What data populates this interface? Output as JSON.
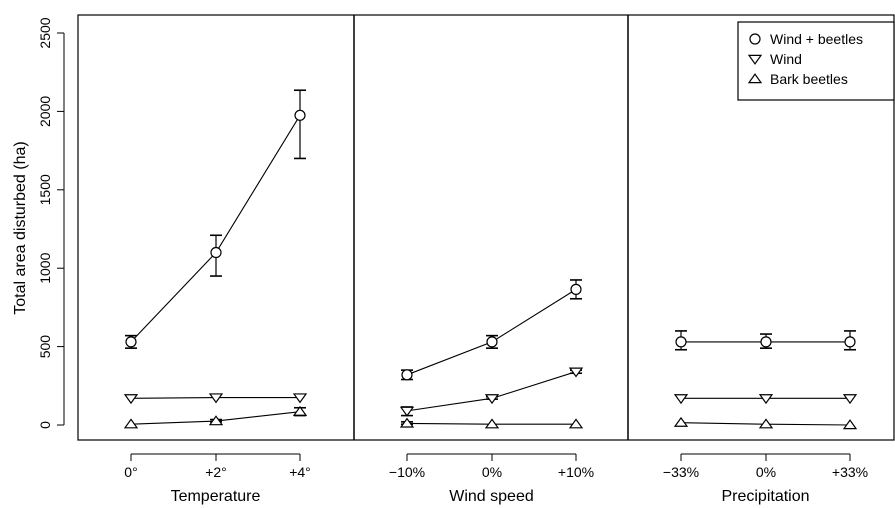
{
  "chart_data": {
    "type": "line",
    "ylabel": "Total area disturbed (ha)",
    "ylim": [
      0,
      2500
    ],
    "yticks": [
      "0",
      "500",
      "1000",
      "1500",
      "2000",
      "2500"
    ],
    "grid": false,
    "legend_position": "top-right",
    "legend": [
      {
        "name": "Wind + beetles",
        "marker": "circle"
      },
      {
        "name": "Wind",
        "marker": "triangle-down"
      },
      {
        "name": "Bark beetles",
        "marker": "triangle-up"
      }
    ],
    "panels": [
      {
        "xlabel": "Temperature",
        "categories": [
          "0°",
          "+2°",
          "+4°"
        ],
        "series": [
          {
            "name": "Wind + beetles",
            "values": [
              530,
              1100,
              1975
            ],
            "err_low": [
              490,
              950,
              1700
            ],
            "err_high": [
              570,
              1210,
              2135
            ]
          },
          {
            "name": "Wind",
            "values": [
              170,
              175,
              175
            ]
          },
          {
            "name": "Bark beetles",
            "values": [
              5,
              25,
              85
            ],
            "err_low": [
              5,
              20,
              60
            ],
            "err_high": [
              10,
              35,
              110
            ]
          }
        ]
      },
      {
        "xlabel": "Wind speed",
        "categories": [
          "−10%",
          "0%",
          "+10%"
        ],
        "series": [
          {
            "name": "Wind + beetles",
            "values": [
              320,
              530,
              865
            ],
            "err_low": [
              290,
              490,
              805
            ],
            "err_high": [
              350,
              570,
              925
            ]
          },
          {
            "name": "Wind",
            "values": [
              90,
              170,
              340
            ],
            "err_low": [
              60,
              165,
              330
            ],
            "err_high": [
              115,
              180,
              350
            ]
          },
          {
            "name": "Bark beetles",
            "values": [
              10,
              5,
              5
            ],
            "err_low": [
              5,
              5,
              5
            ],
            "err_high": [
              20,
              10,
              10
            ]
          }
        ]
      },
      {
        "xlabel": "Precipitation",
        "categories": [
          "−33%",
          "0%",
          "+33%"
        ],
        "series": [
          {
            "name": "Wind + beetles",
            "values": [
              530,
              530,
              530
            ],
            "err_low": [
              480,
              490,
              480
            ],
            "err_high": [
              600,
              580,
              600
            ]
          },
          {
            "name": "Wind",
            "values": [
              170,
              170,
              170
            ]
          },
          {
            "name": "Bark beetles",
            "values": [
              15,
              5,
              0
            ]
          }
        ]
      }
    ]
  }
}
